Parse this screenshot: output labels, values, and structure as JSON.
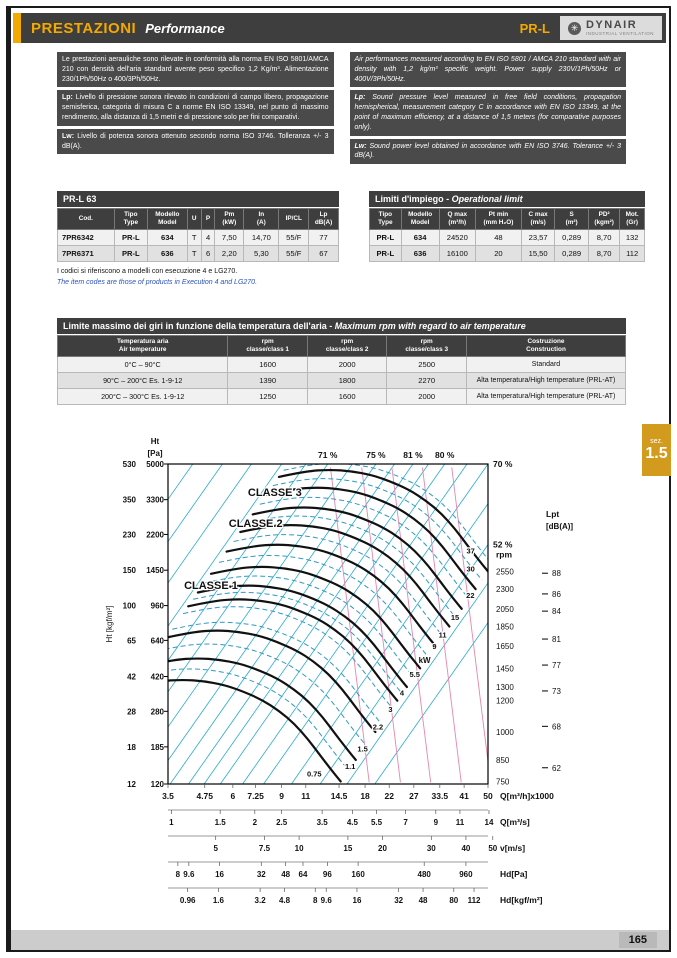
{
  "header": {
    "title_it": "PRESTAZIONI",
    "title_en": "Performance",
    "series": "PR-L",
    "brand": "DYNAIR",
    "brand_sub": "INDUSTRIAL VENTILATION",
    "logo_icon": "✳",
    "accent_color": "#f2a900"
  },
  "intro": {
    "it": {
      "p1": "Le prestazioni aerauliche sono rilevate in conformità alla norma EN ISO 5801/AMCA 210 con densità dell'aria standard avente peso specifico 1,2 Kg/m³. Alimentazione 230/1Ph/50Hz o 400/3Ph/50Hz.",
      "p2_label": "Lp:",
      "p2": "Livello di pressione sonora rilevato in condizioni di campo libero, propagazione semisferica, categoria di misura C a norme EN ISO 13349, nel punto di massimo rendimento, alla distanza di 1,5 metri e di pressione solo per fini comparativi.",
      "p3_label": "Lw:",
      "p3": "Livello di potenza sonora ottenuto secondo norma ISO 3746. Tolleranza +/- 3 dB(A)."
    },
    "en": {
      "p1": "Air performances measured according to EN ISO 5801 / AMCA 210 standard with air density with 1,2 kg/m³ specific weight. Power supply 230V/1Ph/50Hz or 400V/3Ph/50Hz.",
      "p2_label": "Lp:",
      "p2": "Sound pressure level measured in free field conditions, propagation hemispherical, measurement category C in accordance with EN ISO 13349, at the point of maximum efficiency, at a distance of 1,5 meters (for comparative purposes only).",
      "p3_label": "Lw:",
      "p3": "Sound power level obtained in accordance with EN ISO 3746. Tolerance +/- 3 dB(A)."
    }
  },
  "prl63": {
    "title": "PR-L 63",
    "headers": [
      "Cod.",
      "Tipo|Type",
      "Modello|Model",
      "U",
      "P",
      "Pm|(kW)",
      "In|(A)",
      "IP/CL",
      "Lp|dB(A)"
    ],
    "rows": [
      [
        "7PR6342",
        "PR-L",
        "634",
        "T",
        "4",
        "7,50",
        "14,70",
        "55/F",
        "77"
      ],
      [
        "7PR6371",
        "PR-L",
        "636",
        "T",
        "6",
        "2,20",
        "5,30",
        "55/F",
        "67"
      ]
    ],
    "note_it": "I codici si riferiscono a modelli con esecuzione 4 e LG270.",
    "note_en": "The item codes are those of products in Execution 4 and LG270."
  },
  "limits": {
    "title_it": "Limiti d'impiego - ",
    "title_en": "Operational limit",
    "headers": [
      "Tipo|Type",
      "Modello|Model",
      "Q max|(m³/h)",
      "Pt min|(mm H₂O)",
      "C max|(m/s)",
      "S|(m²)",
      "PD²|(kgm²)",
      "Mot.|(Gr)"
    ],
    "rows": [
      [
        "PR-L",
        "634",
        "24520",
        "48",
        "23,57",
        "0,289",
        "8,70",
        "132"
      ],
      [
        "PR-L",
        "636",
        "16100",
        "20",
        "15,50",
        "0,289",
        "8,70",
        "112"
      ]
    ]
  },
  "temp_table": {
    "title_it": "Limite massimo dei giri in funzione della temperatura dell'aria - ",
    "title_en": "Maximum rpm with regard to air temperature",
    "headers": [
      "Temperatura aria|Air temperature",
      "rpm|classe/class 1",
      "rpm|classe/class 2",
      "rpm|classe/class 3",
      "Costruzione|Construction"
    ],
    "rows": [
      [
        "0°C – 90°C",
        "1600",
        "2000",
        "2500",
        "Standard"
      ],
      [
        "90°C – 200°C Es. 1-9-12",
        "1390",
        "1800",
        "2270",
        "Alta temperatura/High temperature (PRL-AT)"
      ],
      [
        "200°C – 300°C Es. 1-9-12",
        "1250",
        "1600",
        "2000",
        "Alta temperatura/High temperature (PRL-AT)"
      ]
    ]
  },
  "chart_data": {
    "type": "line",
    "title": "PR-L 63 fan performance curves (pressure vs flow, log-log)",
    "x_axis": {
      "label": "Q[m³/h]x1000",
      "scale": "log",
      "min": 3.5,
      "max": 50,
      "ticks": [
        3.5,
        4.75,
        6,
        7.25,
        9,
        11,
        14.5,
        18,
        22,
        27,
        33.5,
        41,
        50
      ]
    },
    "y_axis": {
      "title_line1": "Ht",
      "title_line2": "[Pa]",
      "label_kgf": "Ht [kgf/m²]",
      "scale": "log",
      "min": 120,
      "max": 5000,
      "ticks_pa": [
        5000,
        3300,
        2200,
        1450,
        960,
        640,
        420,
        280,
        185,
        120
      ],
      "ticks_kgf": [
        530,
        350,
        230,
        150,
        100,
        65,
        42,
        28,
        18,
        12
      ]
    },
    "rpm_axis": {
      "label": "rpm",
      "values": [
        2550,
        2300,
        2050,
        1850,
        1650,
        1450,
        1300,
        1200,
        1000,
        850,
        750
      ]
    },
    "lpt_axis": {
      "label1": "Lpt",
      "label2": "[dB(A)]",
      "ticks": [
        {
          "label": 88,
          "pa": 1400
        },
        {
          "label": 86,
          "pa": 1100
        },
        {
          "label": 84,
          "pa": 900
        },
        {
          "label": 81,
          "pa": 650
        },
        {
          "label": 77,
          "pa": 480
        },
        {
          "label": 73,
          "pa": 355
        },
        {
          "label": 68,
          "pa": 235
        },
        {
          "label": 62,
          "pa": 145
        }
      ]
    },
    "base_curve_rpm": 2550,
    "base_curve": [
      [
        8.8,
        4300
      ],
      [
        11,
        4600
      ],
      [
        13.5,
        4680
      ],
      [
        16,
        4600
      ],
      [
        19,
        4400
      ],
      [
        22,
        4100
      ],
      [
        26,
        3700
      ],
      [
        30,
        3250
      ],
      [
        34,
        2800
      ],
      [
        38,
        2350
      ],
      [
        42,
        1950
      ],
      [
        46,
        1650
      ],
      [
        50,
        1430
      ]
    ],
    "dashed_rpm": [
      2650,
      2425,
      2175,
      1950,
      1750,
      1550,
      1375,
      1250,
      1150,
      1050,
      925,
      800
    ],
    "efficiency_lines": [
      {
        "q0": 4.3
      },
      {
        "q0": 5.5
      },
      {
        "q0": 7.0
      },
      {
        "q0": 9.0
      },
      {
        "q0": 11.0
      },
      {
        "q0": 13.2,
        "label": "71 %"
      },
      {
        "q0": 16.2
      },
      {
        "q0": 19.7,
        "label": "75 %"
      },
      {
        "q0": 23
      },
      {
        "q0": 26.8,
        "label": "81 %"
      },
      {
        "q0": 30.5
      },
      {
        "q0": 34.9,
        "label": "80 %"
      },
      {
        "q0": 42
      },
      {
        "q0": 50,
        "label": "70 %"
      },
      {
        "q0": 63
      },
      {
        "q0": 80,
        "label": "52 %"
      },
      {
        "q0": 100
      },
      {
        "q0": 126
      }
    ],
    "kw_lines": {
      "unit": "kW",
      "values": [
        37,
        30,
        22,
        15,
        11,
        9,
        5.5,
        4,
        3,
        2.2,
        1.5,
        1.1,
        0.75
      ]
    },
    "pink_lines": [
      13.5,
      17.5,
      22.5,
      29,
      37
    ],
    "classe_labels": [
      {
        "label": "CLASSE 3",
        "q": 6.8,
        "p": 3450
      },
      {
        "label": "CLASSE 2",
        "q": 5.8,
        "p": 2400
      },
      {
        "label": "CLASSE 1",
        "q": 4.0,
        "p": 1165
      }
    ],
    "scale_rows": [
      {
        "unit": "Q[m³/h]x1000",
        "map": "q1000",
        "bold": true,
        "values": [
          "3.5",
          "4.75",
          "6",
          "7.25",
          "9",
          "11",
          "14.5",
          "18",
          "22",
          "27",
          "33.5",
          "41",
          "50"
        ]
      },
      {
        "unit": "Q[m³/s]",
        "map": "qs",
        "values": [
          "1",
          "1.5",
          "2",
          "2.5",
          "3.5",
          "4.5",
          "5.5",
          "7",
          "9",
          "11",
          "14"
        ]
      },
      {
        "unit": "v[m/s]",
        "map": "v",
        "values": [
          "5",
          "7.5",
          "10",
          "15",
          "20",
          "30",
          "40",
          "50"
        ]
      },
      {
        "unit": "Hd[Pa]",
        "map": "hdpa",
        "values": [
          "8",
          "9.6",
          "16",
          "32",
          "48",
          "64",
          "96",
          "160",
          "480",
          "960"
        ]
      },
      {
        "unit": "Hd[kgf/m²]",
        "map": "hdkgf",
        "values": [
          "0.96",
          "1.6",
          "3.2",
          "4.8",
          "8",
          "9.6",
          "16",
          "32",
          "48",
          "80",
          "112"
        ]
      }
    ],
    "colors": {
      "curve": "#111111",
      "dashed": "#2e9ac4",
      "efficiency": "#29abd4",
      "pink": "#e886ac",
      "labels": "#111111"
    }
  },
  "sez_tab": {
    "small": "sez.",
    "big": "1.5"
  },
  "footer": {
    "page": "165"
  }
}
